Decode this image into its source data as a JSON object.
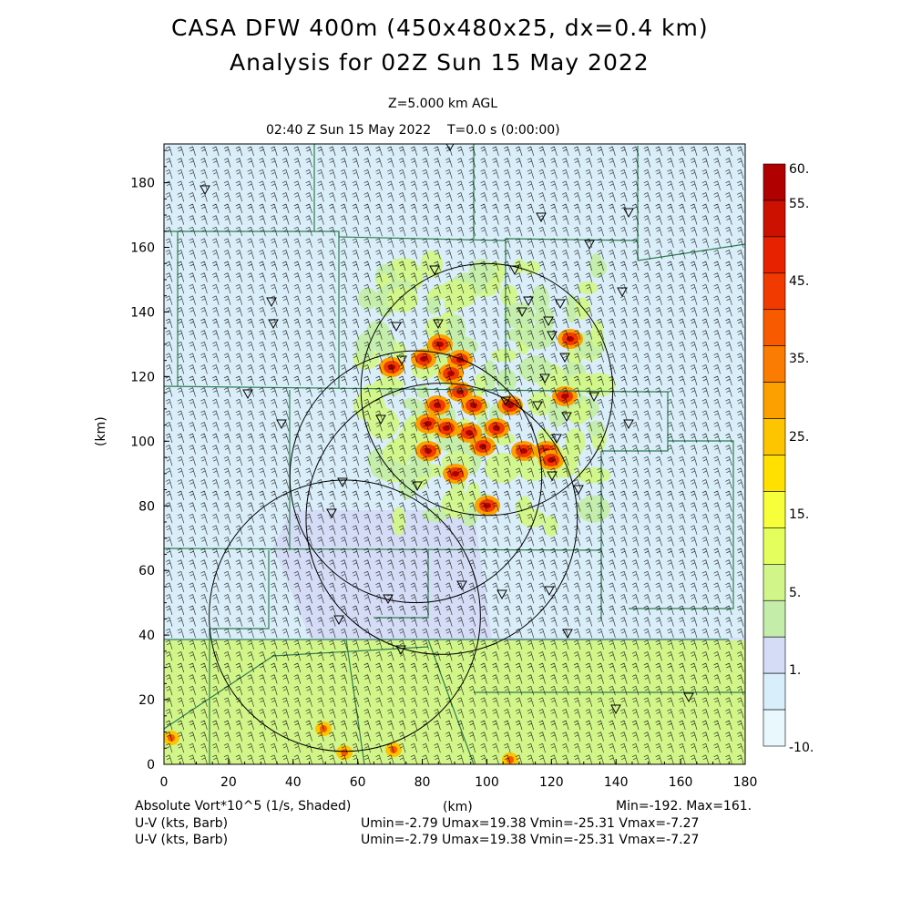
{
  "header": {
    "title_line1": "CASA DFW 400m (450x480x25, dx=0.4 km)",
    "title_line2": "Analysis for 02Z Sun 15 May 2022",
    "level": "Z=5.000 km AGL",
    "time": "02:40 Z Sun 15 May 2022    T=0.0 s (0:00:00)"
  },
  "map": {
    "x_axis_label": "(km)",
    "y_axis_label": "(km)",
    "x_ticks": [
      "0",
      "20",
      "40",
      "60",
      "80",
      "100",
      "120",
      "140",
      "160",
      "180"
    ],
    "y_ticks": [
      "0",
      "20",
      "40",
      "60",
      "80",
      "100",
      "120",
      "140",
      "160",
      "180"
    ],
    "xlim": [
      0,
      180
    ],
    "ylim": [
      0,
      192
    ],
    "background_fill": "#d9eef9",
    "boundary_color": "#2e7d4f",
    "radar_ring_color": "#000000",
    "radar_rings": [
      {
        "cx": 100,
        "cy": 116,
        "r": 39
      },
      {
        "cx": 78,
        "cy": 89,
        "r": 39
      },
      {
        "cx": 86,
        "cy": 76,
        "r": 42
      },
      {
        "cx": 56,
        "cy": 46,
        "r": 42
      }
    ],
    "station_marker": "triangle-down"
  },
  "colorbar": {
    "labels": [
      "60.",
      "55.",
      "45.",
      "35.",
      "25.",
      "15.",
      "5.",
      "1.",
      "-10."
    ],
    "colors": [
      "#b00000",
      "#cc1100",
      "#e62200",
      "#f03a00",
      "#f85a00",
      "#fa7c00",
      "#fca000",
      "#fdc400",
      "#ffe000",
      "#f6ff3a",
      "#e4ff5c",
      "#d2f58a",
      "#c4edaa",
      "#d4dcf6",
      "#d8eefb",
      "#e8f8fd"
    ]
  },
  "footer": {
    "left1": "Absolute Vort*10^5 (1/s, Shaded)",
    "left2": "U-V (kts, Barb)",
    "left3": "U-V (kts, Barb)",
    "center_km": "(km)",
    "minmax": "Min=-192. Max=161.",
    "uv1": "Umin=-2.79 Umax=19.38 Vmin=-25.31 Vmax=-7.27",
    "uv2": "Umin=-2.79 Umax=19.38 Vmin=-25.31 Vmax=-7.27"
  }
}
